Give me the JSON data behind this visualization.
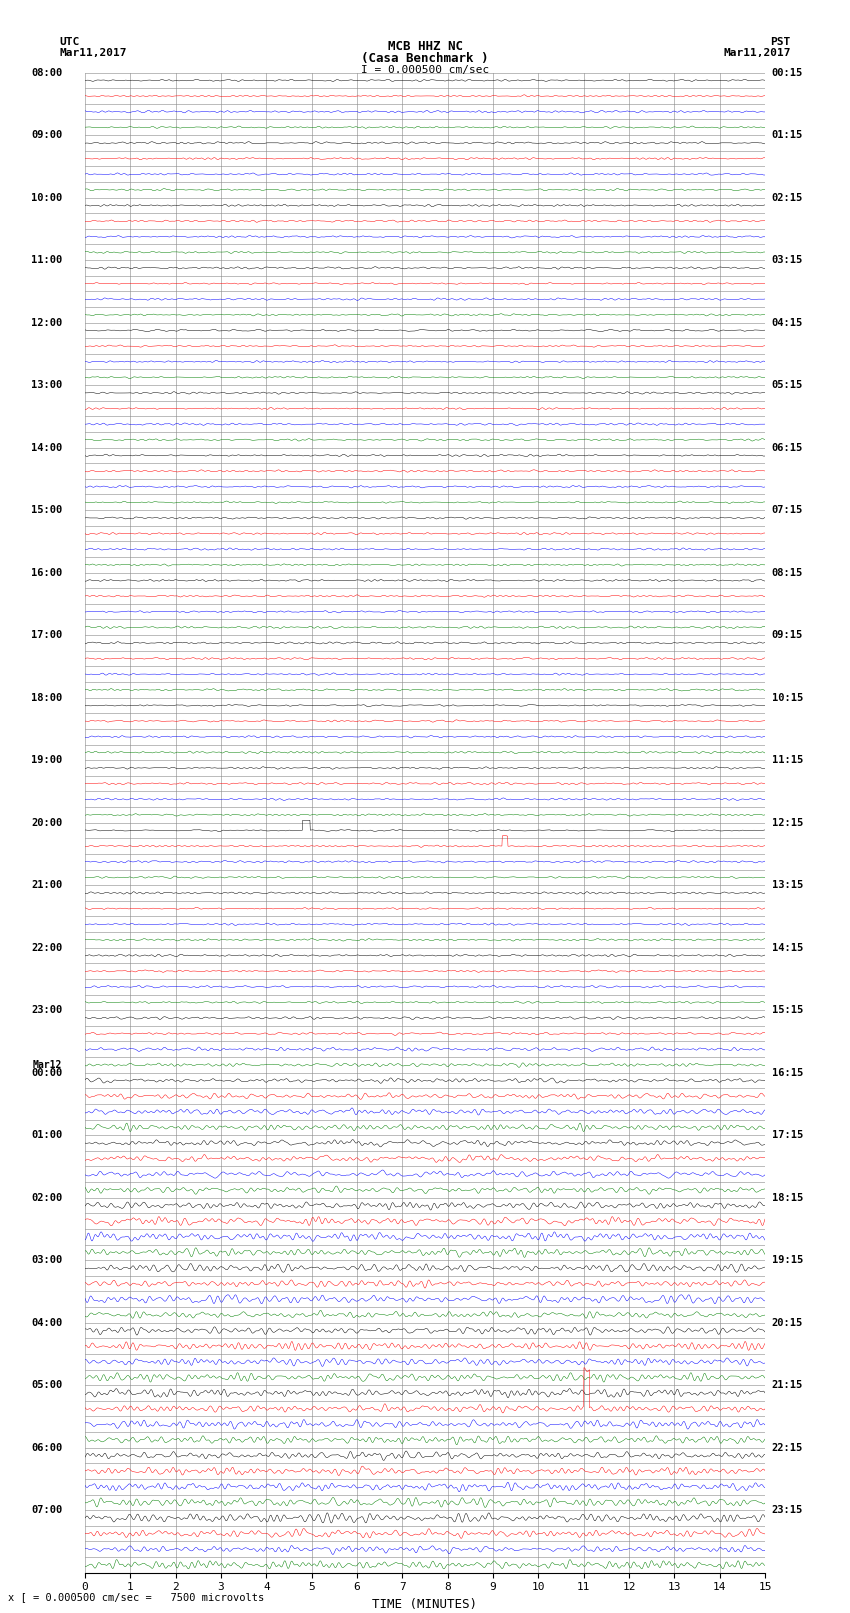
{
  "title_line1": "MCB HHZ NC",
  "title_line2": "(Casa Benchmark )",
  "scale_label": "I = 0.000500 cm/sec",
  "left_label_top": "UTC",
  "left_label_date": "Mar11,2017",
  "right_label_top": "PST",
  "right_label_date": "Mar11,2017",
  "bottom_label": "TIME (MINUTES)",
  "scale_note": "x [ = 0.000500 cm/sec =   7500 microvolts",
  "utc_labels": [
    [
      "08:00",
      0
    ],
    [
      "09:00",
      4
    ],
    [
      "10:00",
      8
    ],
    [
      "11:00",
      12
    ],
    [
      "12:00",
      16
    ],
    [
      "13:00",
      20
    ],
    [
      "14:00",
      24
    ],
    [
      "15:00",
      28
    ],
    [
      "16:00",
      32
    ],
    [
      "17:00",
      36
    ],
    [
      "18:00",
      40
    ],
    [
      "19:00",
      44
    ],
    [
      "20:00",
      48
    ],
    [
      "21:00",
      52
    ],
    [
      "22:00",
      56
    ],
    [
      "23:00",
      60
    ],
    [
      "Mar12",
      63
    ],
    [
      "00:00",
      64
    ],
    [
      "01:00",
      68
    ],
    [
      "02:00",
      72
    ],
    [
      "03:00",
      76
    ],
    [
      "04:00",
      80
    ],
    [
      "05:00",
      84
    ],
    [
      "06:00",
      88
    ],
    [
      "07:00",
      92
    ]
  ],
  "pst_labels": [
    [
      "00:15",
      0
    ],
    [
      "01:15",
      4
    ],
    [
      "02:15",
      8
    ],
    [
      "03:15",
      12
    ],
    [
      "04:15",
      16
    ],
    [
      "05:15",
      20
    ],
    [
      "06:15",
      24
    ],
    [
      "07:15",
      28
    ],
    [
      "08:15",
      32
    ],
    [
      "09:15",
      36
    ],
    [
      "10:15",
      40
    ],
    [
      "11:15",
      44
    ],
    [
      "12:15",
      48
    ],
    [
      "13:15",
      52
    ],
    [
      "14:15",
      56
    ],
    [
      "15:15",
      60
    ],
    [
      "16:15",
      64
    ],
    [
      "17:15",
      68
    ],
    [
      "18:15",
      72
    ],
    [
      "19:15",
      76
    ],
    [
      "20:15",
      80
    ],
    [
      "21:15",
      84
    ],
    [
      "22:15",
      88
    ],
    [
      "23:15",
      92
    ]
  ],
  "colors": [
    "black",
    "red",
    "blue",
    "green"
  ],
  "bg_color": "#ffffff",
  "n_rows": 96,
  "n_minutes": 15,
  "fig_width": 8.5,
  "fig_height": 16.13
}
